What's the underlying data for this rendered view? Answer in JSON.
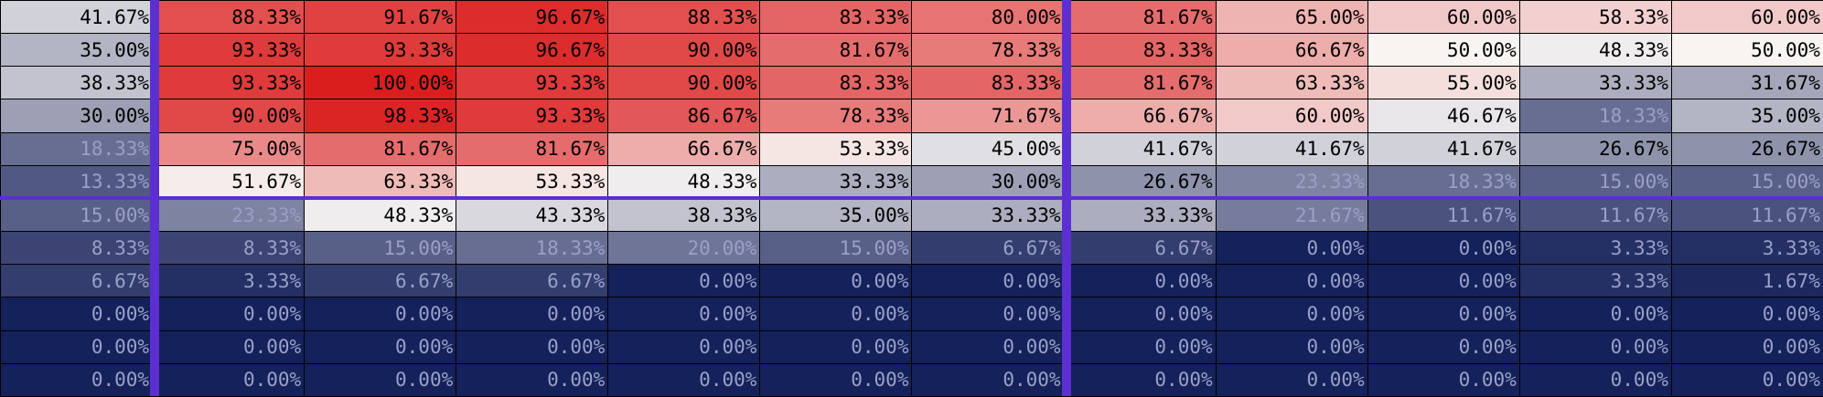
{
  "chart_data": {
    "type": "heatmap",
    "value_format": "percent",
    "vertical_separators_after_columns": [
      0,
      6
    ],
    "horizontal_separators_after_rows": [
      5
    ],
    "colors": {
      "low": "#15215a",
      "mid": "#f7f4f2",
      "high": "#da1e1e",
      "separator": "#5b2fd0"
    },
    "values": [
      [
        41.67,
        88.33,
        91.67,
        96.67,
        88.33,
        83.33,
        80.0,
        81.67,
        65.0,
        60.0,
        58.33,
        60.0
      ],
      [
        35.0,
        93.33,
        93.33,
        96.67,
        90.0,
        81.67,
        78.33,
        83.33,
        66.67,
        50.0,
        48.33,
        50.0
      ],
      [
        38.33,
        93.33,
        100.0,
        93.33,
        90.0,
        83.33,
        83.33,
        81.67,
        63.33,
        55.0,
        33.33,
        31.67
      ],
      [
        30.0,
        90.0,
        98.33,
        93.33,
        86.67,
        78.33,
        71.67,
        66.67,
        60.0,
        46.67,
        18.33,
        35.0
      ],
      [
        18.33,
        75.0,
        81.67,
        81.67,
        66.67,
        53.33,
        45.0,
        41.67,
        41.67,
        41.67,
        26.67,
        26.67
      ],
      [
        13.33,
        51.67,
        63.33,
        53.33,
        48.33,
        33.33,
        30.0,
        26.67,
        23.33,
        18.33,
        15.0,
        15.0
      ],
      [
        15.0,
        23.33,
        48.33,
        43.33,
        38.33,
        35.0,
        33.33,
        33.33,
        21.67,
        11.67,
        11.67,
        11.67
      ],
      [
        8.33,
        8.33,
        15.0,
        18.33,
        20.0,
        15.0,
        6.67,
        6.67,
        0.0,
        0.0,
        3.33,
        3.33
      ],
      [
        6.67,
        3.33,
        6.67,
        6.67,
        0.0,
        0.0,
        0.0,
        0.0,
        0.0,
        0.0,
        3.33,
        1.67
      ],
      [
        0.0,
        0.0,
        0.0,
        0.0,
        0.0,
        0.0,
        0.0,
        0.0,
        0.0,
        0.0,
        0.0,
        0.0
      ],
      [
        0.0,
        0.0,
        0.0,
        0.0,
        0.0,
        0.0,
        0.0,
        0.0,
        0.0,
        0.0,
        0.0,
        0.0
      ],
      [
        0.0,
        0.0,
        0.0,
        0.0,
        0.0,
        0.0,
        0.0,
        0.0,
        0.0,
        0.0,
        0.0,
        0.0
      ]
    ]
  }
}
